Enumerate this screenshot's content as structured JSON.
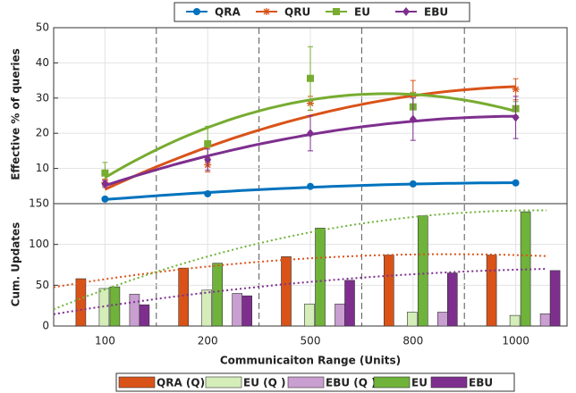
{
  "chart_data": [
    {
      "type": "errorbar",
      "ylabel": "Effective % of queries",
      "ylim": [
        0,
        50
      ],
      "yticks": [
        10,
        20,
        30,
        40,
        50
      ],
      "grid": true,
      "fit": true,
      "legend": "top",
      "series": [
        {
          "name": "QRA",
          "color": "#0072bd",
          "marker": "circle",
          "values": [
            1.3,
            2.8,
            4.9,
            5.6,
            5.9
          ],
          "errors": [
            0.3,
            0.3,
            0.3,
            0.3,
            0.3
          ]
        },
        {
          "name": "QRU",
          "color": "#d95319",
          "marker": "star",
          "values": [
            6,
            11,
            28.5,
            31,
            32.5
          ],
          "errors": [
            1,
            2,
            2,
            4,
            3
          ]
        },
        {
          "name": "EU",
          "color": "#77ac30",
          "marker": "square",
          "values": [
            8.7,
            17,
            35.6,
            27.5,
            27
          ],
          "errors": [
            3,
            5,
            9,
            4,
            2
          ]
        },
        {
          "name": "EBU",
          "color": "#7e2f8e",
          "marker": "diamond",
          "values": [
            5.6,
            12.5,
            20,
            24,
            24.5
          ],
          "errors": [
            1,
            3,
            5,
            6,
            6
          ]
        }
      ]
    },
    {
      "type": "bar",
      "categories": [
        "100",
        "200",
        "500",
        "800",
        "1000"
      ],
      "xlabel": "Communicaiton Range (Units)",
      "ylabel": "Cum. Updates",
      "ylim": [
        0,
        150
      ],
      "yticks": [
        0,
        50,
        100,
        150
      ],
      "grid": true,
      "legend": "bottom",
      "series": [
        {
          "name": "QRA (Q)",
          "color": "#d95319",
          "trend": true,
          "values": [
            58,
            71,
            85,
            87,
            87
          ]
        },
        {
          "name": "EU (Q )",
          "color": "#d4edb9",
          "trend": false,
          "values": [
            46,
            44,
            27,
            17,
            13
          ]
        },
        {
          "name": "EBU (Q )",
          "color": "#c99ed0",
          "trend": false,
          "values": [
            39,
            40,
            27,
            17,
            15
          ]
        },
        {
          "name": "EU",
          "color": "#6fb33a",
          "trend": true,
          "values": [
            48,
            77,
            120,
            135,
            140
          ]
        },
        {
          "name": "EBU",
          "color": "#7e2f8e",
          "trend": true,
          "values": [
            26,
            37,
            56,
            65,
            68
          ]
        }
      ]
    }
  ]
}
